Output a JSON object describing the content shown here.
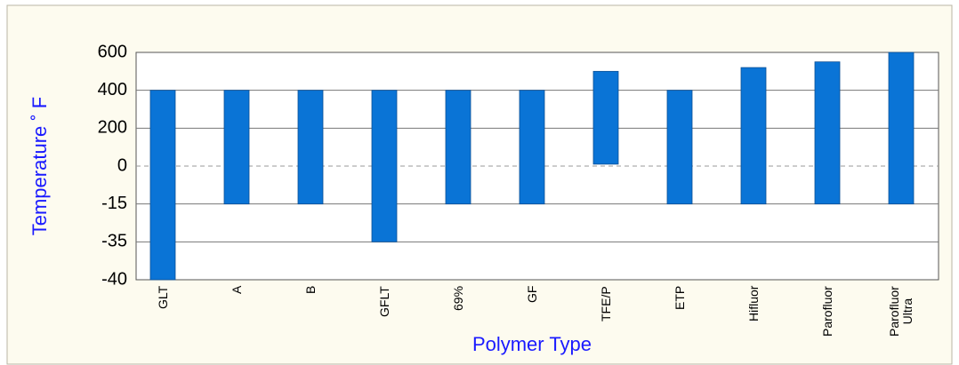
{
  "chart_data": {
    "type": "floating_bar",
    "x_label": "Polymer Type",
    "y_label": "Temperature ˚ F",
    "categories": [
      "GLT",
      "A",
      "B",
      "GFLT",
      "69%",
      "GF",
      "TFE/P",
      "ETP",
      "Hifluor",
      "Parofluor",
      "Parofluor\nUltra"
    ],
    "low": [
      -40,
      -15,
      -15,
      -35,
      -15,
      -15,
      10,
      -15,
      -15,
      -15,
      -15
    ],
    "high": [
      400,
      400,
      400,
      400,
      400,
      400,
      500,
      400,
      520,
      550,
      600
    ],
    "color": "#0a74d6",
    "yticks": [
      600,
      400,
      200,
      0,
      -15,
      -35,
      -40
    ],
    "ylim": [
      -40,
      600
    ],
    "grid": true
  }
}
